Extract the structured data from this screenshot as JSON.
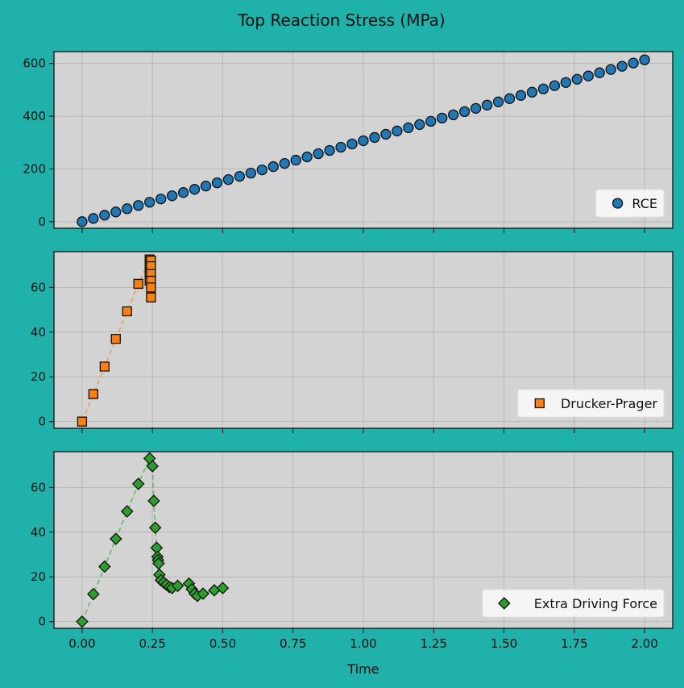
{
  "figure": {
    "title": "Top Reaction Stress (MPa)",
    "background": "#20b2aa",
    "axes_bg": "#d3d3d3",
    "xlabel": "Time"
  },
  "chart_data": [
    {
      "type": "scatter",
      "legend": "RCE",
      "legend_position": "lower-right",
      "marker": "circle",
      "color": "#1f77b4",
      "grid": true,
      "xlim": [
        -0.1,
        2.1
      ],
      "ylim": [
        -25,
        645
      ],
      "yticks": [
        0,
        200,
        400,
        600
      ],
      "x": [
        0.0,
        0.04,
        0.08,
        0.12,
        0.16,
        0.2,
        0.24,
        0.28,
        0.32,
        0.36,
        0.4,
        0.44,
        0.48,
        0.52,
        0.56,
        0.6,
        0.64,
        0.68,
        0.72,
        0.76,
        0.8,
        0.84,
        0.88,
        0.92,
        0.96,
        1.0,
        1.04,
        1.08,
        1.12,
        1.16,
        1.2,
        1.24,
        1.28,
        1.32,
        1.36,
        1.4,
        1.44,
        1.48,
        1.52,
        1.56,
        1.6,
        1.64,
        1.68,
        1.72,
        1.76,
        1.8,
        1.84,
        1.88,
        1.92,
        1.96,
        2.0
      ],
      "y": [
        0,
        12.3,
        24.6,
        36.8,
        49.1,
        61.4,
        73.7,
        86.0,
        98.2,
        110.5,
        122.8,
        135.1,
        147.4,
        159.6,
        171.9,
        184.2,
        196.5,
        208.8,
        221.0,
        233.3,
        245.6,
        257.9,
        270.2,
        282.4,
        294.7,
        307.0,
        319.3,
        331.6,
        343.8,
        356.1,
        368.4,
        380.7,
        393.0,
        405.2,
        417.5,
        429.8,
        442.1,
        454.4,
        466.6,
        478.9,
        491.2,
        503.5,
        515.8,
        528.0,
        540.3,
        552.6,
        564.9,
        577.2,
        589.4,
        601.7,
        614.0
      ]
    },
    {
      "type": "scatter",
      "legend": "Drucker-Prager",
      "legend_position": "lower-right",
      "marker": "square",
      "color": "#ff7f0e",
      "grid": true,
      "xlim": [
        -0.1,
        2.1
      ],
      "ylim": [
        -3,
        76
      ],
      "yticks": [
        0,
        20,
        40,
        60
      ],
      "x": [
        0.0,
        0.04,
        0.08,
        0.12,
        0.16,
        0.2,
        0.24,
        0.24,
        0.24,
        0.24,
        0.24,
        0.24,
        0.24,
        0.245,
        0.245,
        0.245,
        0.245,
        0.245,
        0.245
      ],
      "y": [
        0,
        12.3,
        24.6,
        37.0,
        49.3,
        61.6,
        72.5,
        71.5,
        70.5,
        69.0,
        67.0,
        65.0,
        63.0,
        72.0,
        69.5,
        66.0,
        63.0,
        60.0,
        55.5
      ]
    },
    {
      "type": "scatter",
      "legend": "Extra Driving Force",
      "legend_position": "lower-right",
      "marker": "diamond",
      "color": "#2ca02c",
      "grid": true,
      "xlim": [
        -0.1,
        2.1
      ],
      "ylim": [
        -3,
        76
      ],
      "yticks": [
        0,
        20,
        40,
        60
      ],
      "xticks": [
        0.0,
        0.25,
        0.5,
        0.75,
        1.0,
        1.25,
        1.5,
        1.75,
        2.0
      ],
      "xtick_labels": [
        "0.00",
        "0.25",
        "0.50",
        "0.75",
        "1.00",
        "1.25",
        "1.50",
        "1.75",
        "2.00"
      ],
      "x": [
        0.0,
        0.04,
        0.08,
        0.12,
        0.16,
        0.2,
        0.24,
        0.25,
        0.255,
        0.26,
        0.265,
        0.268,
        0.27,
        0.272,
        0.275,
        0.28,
        0.29,
        0.3,
        0.31,
        0.32,
        0.34,
        0.38,
        0.39,
        0.4,
        0.41,
        0.43,
        0.47,
        0.5
      ],
      "y": [
        0,
        12.3,
        24.6,
        37.0,
        49.3,
        61.6,
        73.0,
        69.5,
        54.0,
        42.0,
        33.0,
        29.0,
        27.5,
        26.0,
        21.0,
        18.5,
        17.5,
        16.5,
        15.5,
        15.0,
        16.0,
        17.0,
        14.5,
        12.5,
        11.5,
        12.5,
        14.0,
        15.0
      ]
    }
  ]
}
